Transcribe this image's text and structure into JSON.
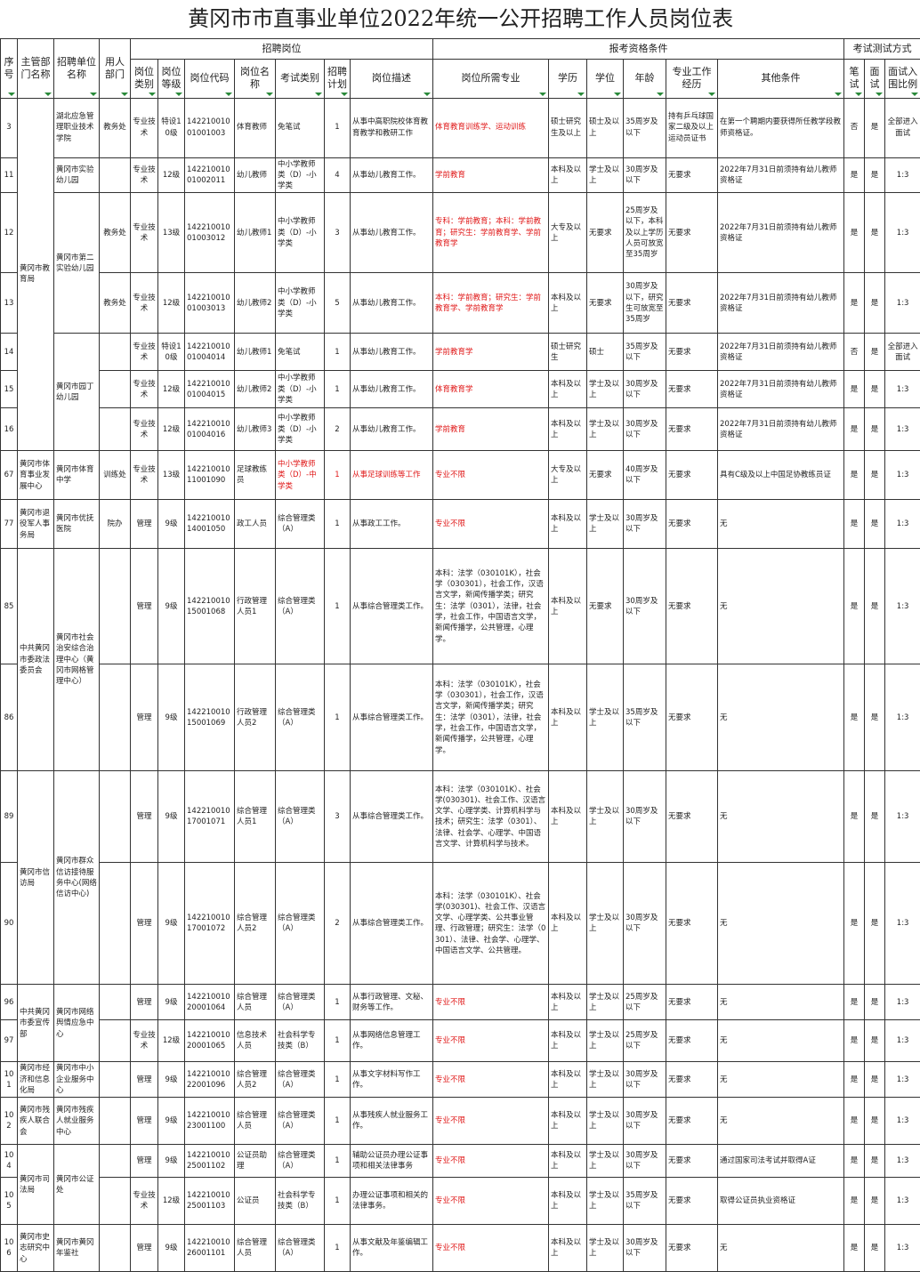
{
  "header": {
    "title": "黄冈市市直事业单位2022年统一公开招聘工作人员岗位表",
    "groups": [
      "招聘岗位",
      "报考资格条件",
      "考试测试方式"
    ],
    "columns": [
      "序号",
      "主管部门名称",
      "招聘单位名称",
      "用人部门",
      "岗位类别",
      "岗位等级",
      "岗位代码",
      "岗位名称",
      "考试类别",
      "招聘计划",
      "岗位描述",
      "岗位所需专业",
      "学历",
      "学位",
      "年龄",
      "专业工作经历",
      "其他条件",
      "笔试",
      "面试",
      "面试入围比例"
    ]
  },
  "groups": [
    {
      "dept": "黄冈市教育局",
      "units": [
        {
          "unit": "湖北应急管理职业技术学院",
          "rows": [
            [
              "3",
              "教务处",
              "专业技术",
              "特设10级",
              "14221001001001003",
              "体育教师",
              "免笔试",
              "1",
              "从事中高职院校体育教育教学和教研工作",
              "体育教育训练学、运动训练",
              "硕士研究生及以上",
              "硕士及以上",
              "35周岁及以下",
              "持有乒乓球国家二级及以上运动员证书",
              "在第一个聘期内要获得所任教学段教师资格证。",
              "否",
              "是",
              "全部进入面试"
            ]
          ]
        },
        {
          "unit": "黄冈市实验幼儿园",
          "rows": [
            [
              "11",
              "",
              "专业技术",
              "12级",
              "14221001001002011",
              "幼儿教师",
              "中小学教师类（D）-小学类",
              "4",
              "从事幼儿教育工作。",
              "学前教育",
              "本科及以上",
              "学士及以上",
              "30周岁及以下",
              "无要求",
              "2022年7月31日前须持有幼儿教师资格证",
              "是",
              "是",
              "1:3"
            ]
          ]
        },
        {
          "unit": "黄冈市第二实验幼儿园",
          "rows": [
            [
              "12",
              "教务处",
              "专业技术",
              "13级",
              "14221001001003012",
              "幼儿教师1",
              "中小学教师类（D）-小学类",
              "3",
              "从事幼儿教育工作。",
              "专科：学前教育；本科：学前教育；研究生：学前教育学、学前教育学",
              "大专及以上",
              "无要求",
              "25周岁及以下，本科及以上学历人员可放宽至35周岁",
              "无要求",
              "2022年7月31日前须持有幼儿教师资格证",
              "是",
              "是",
              "1:3"
            ],
            [
              "13",
              "教务处",
              "专业技术",
              "12级",
              "14221001001003013",
              "幼儿教师2",
              "中小学教师类（D）-小学类",
              "5",
              "从事幼儿教育工作。",
              "本科：学前教育；研究生：学前教育学、学前教育学",
              "本科及以上",
              "无要求",
              "30周岁及以下，研究生可放宽至35周岁",
              "无要求",
              "2022年7月31日前须持有幼儿教师资格证",
              "是",
              "是",
              "1:3"
            ]
          ]
        },
        {
          "unit": "黄冈市园丁幼儿园",
          "rows": [
            [
              "14",
              "",
              "专业技术",
              "特设10级",
              "14221001001004014",
              "幼儿教师1",
              "免笔试",
              "1",
              "从事幼儿教育工作。",
              "学前教育学",
              "硕士研究生",
              "硕士",
              "35周岁及以下",
              "无要求",
              "2022年7月31日前须持有幼儿教师资格证",
              "否",
              "是",
              "全部进入面试"
            ],
            [
              "15",
              "",
              "专业技术",
              "12级",
              "14221001001004015",
              "幼儿教师2",
              "中小学教师类（D）-小学类",
              "1",
              "从事幼儿教育工作。",
              "体育教育学",
              "本科及以上",
              "学士及以上",
              "30周岁及以下",
              "无要求",
              "2022年7月31日前须持有幼儿教师资格证",
              "是",
              "是",
              "1:3"
            ],
            [
              "16",
              "",
              "专业技术",
              "12级",
              "14221001001004016",
              "幼儿教师3",
              "中小学教师类（D）-小学类",
              "2",
              "从事幼儿教育工作。",
              "学前教育",
              "本科及以上",
              "学士及以上",
              "30周岁及以下",
              "无要求",
              "2022年7月31日前须持有幼儿教师资格证",
              "是",
              "是",
              "1:3"
            ]
          ]
        }
      ]
    },
    {
      "dept": "黄冈市体育事业发展中心",
      "units": [
        {
          "unit": "黄冈市体育中学",
          "rows": [
            [
              "67",
              "训练处",
              "专业技术",
              "13级",
              "14221001011001090",
              "足球教练员",
              "中小学教师类（D）-中学类",
              "1",
              "从事足球训练等工作",
              "专业不限",
              "大专及以上",
              "无要求",
              "40周岁及以下",
              "无要求",
              "具有C级及以上中国足协教练员证",
              "是",
              "是",
              "1:3"
            ]
          ]
        }
      ]
    },
    {
      "dept": "黄冈市退役军人事务局",
      "units": [
        {
          "unit": "黄冈市优抚医院",
          "rows": [
            [
              "77",
              "院办",
              "管理",
              "9级",
              "14221001014001050",
              "政工人员",
              "综合管理类（A）",
              "1",
              "从事政工工作。",
              "专业不限",
              "本科及以上",
              "学士及以上",
              "30周岁及以下",
              "无要求",
              "无",
              "是",
              "是",
              "1:3"
            ]
          ]
        }
      ]
    },
    {
      "dept": "中共黄冈市委政法委员会",
      "units": [
        {
          "unit": "黄冈市社会治安综合治理中心（黄冈市网格管理中心）",
          "rows": [
            [
              "85",
              "",
              "管理",
              "9级",
              "14221001015001068",
              "行政管理人员1",
              "综合管理类（A）",
              "1",
              "从事综合管理类工作。",
              "本科：法学（030101K），社会学（030301），社会工作，汉语言文学，新闻传播学类；研究生：法学（0301），法律，社会学，社会工作，中国语言文学，新闻传播学，公共管理，心理学。",
              "本科及以上",
              "无要求",
              "30周岁及以下",
              "无要求",
              "无",
              "是",
              "是",
              "1:3"
            ],
            [
              "86",
              "",
              "管理",
              "9级",
              "14221001015001069",
              "行政管理人员2",
              "综合管理类（A）",
              "1",
              "从事综合管理类工作。",
              "本科：法学（030101K），社会学（030301），社会工作，汉语言文学，新闻传播学类；研究生：法学（0301），法律，社会学，社会工作，中国语言文学，新闻传播学，公共管理，心理学。",
              "本科及以上",
              "学士及以上",
              "35周岁及以下",
              "无要求",
              "无",
              "是",
              "是",
              "1:3"
            ]
          ]
        }
      ]
    },
    {
      "dept": "黄冈市信访局",
      "units": [
        {
          "unit": "黄冈市群众信访接待服务中心(网络信访中心)",
          "rows": [
            [
              "89",
              "",
              "管理",
              "9级",
              "14221001017001071",
              "综合管理人员1",
              "综合管理类（A）",
              "3",
              "从事综合管理类工作。",
              "本科：法学（030101K）、社会学(030301)、社会工作、汉语言文学、心理学类、计算机科学与技术；研究生：法学（0301）、法律、社会学、心理学、中国语言文学、计算机科学与技术。",
              "本科及以上",
              "学士及以上",
              "30周岁及以下",
              "无要求",
              "无",
              "是",
              "是",
              "1:3"
            ],
            [
              "90",
              "",
              "管理",
              "9级",
              "14221001017001072",
              "综合管理人员2",
              "综合管理类（A）",
              "2",
              "从事综合管理类工作。",
              "本科：法学（030101K）、社会学(030301)、社会工作、汉语言文学、心理学类、公共事业管理、行政管理；研究生：法学（0301）、法律、社会学、心理学、中国语言文学、公共管理。",
              "本科及以上",
              "学士及以上",
              "30周岁及以下",
              "无要求",
              "无",
              "是",
              "是",
              "1:3"
            ]
          ]
        }
      ]
    },
    {
      "dept": "中共黄冈市委宣传部",
      "units": [
        {
          "unit": "黄冈市网络舆情应急中心",
          "rows": [
            [
              "96",
              "",
              "管理",
              "9级",
              "14221001020001064",
              "综合管理人员",
              "综合管理类（A）",
              "1",
              "从事行政管理、文秘、财务等工作。",
              "专业不限",
              "本科及以上",
              "学士及以上",
              "25周岁及以下",
              "无要求",
              "无",
              "是",
              "是",
              "1:3"
            ],
            [
              "97",
              "",
              "专业技术",
              "12级",
              "14221001020001065",
              "信息技术人员",
              "社会科学专技类（B）",
              "1",
              "从事网络信息管理工作。",
              "专业不限",
              "本科及以上",
              "学士及以上",
              "25周岁及以下",
              "无要求",
              "无",
              "是",
              "是",
              "1:3"
            ]
          ]
        }
      ]
    },
    {
      "dept": "黄冈市经济和信息化局",
      "units": [
        {
          "unit": "黄冈市中小企业服务中心",
          "rows": [
            [
              "101",
              "",
              "管理",
              "9级",
              "14221001022001096",
              "综合管理人员2",
              "综合管理类（A）",
              "1",
              "从事文字材料写作工作。",
              "专业不限",
              "本科及以上",
              "学士及以上",
              "30周岁及以下",
              "无要求",
              "无",
              "是",
              "是",
              "1:3"
            ]
          ]
        }
      ]
    },
    {
      "dept": "黄冈市残疾人联合会",
      "units": [
        {
          "unit": "黄冈市残疾人就业服务中心",
          "rows": [
            [
              "102",
              "",
              "管理",
              "9级",
              "14221001023001100",
              "综合管理人员",
              "综合管理类（A）",
              "1",
              "从事残疾人就业服务工作。",
              "专业不限",
              "本科及以上",
              "学士及以上",
              "30周岁及以下",
              "无要求",
              "无",
              "是",
              "是",
              "1:3"
            ]
          ]
        }
      ]
    },
    {
      "dept": "黄冈市司法局",
      "units": [
        {
          "unit": "黄冈市公证处",
          "rows": [
            [
              "104",
              "",
              "管理",
              "9级",
              "14221001025001102",
              "公证员助理",
              "综合管理类（A）",
              "1",
              "辅助公证员办理公证事项和相关法律事务",
              "专业不限",
              "本科及以上",
              "学士及以上",
              "30周岁及以下",
              "无要求",
              "通过国家司法考试并取得A证",
              "是",
              "是",
              "1:3"
            ],
            [
              "105",
              "",
              "专业技术",
              "12级",
              "14221001025001103",
              "公证员",
              "社会科学专技类（B）",
              "1",
              "办理公证事项和相关的法律事务。",
              "专业不限",
              "本科及以上",
              "学士及以上",
              "35周岁及以下",
              "无要求",
              "取得公证员执业资格证",
              "是",
              "是",
              "1:3"
            ]
          ]
        }
      ]
    },
    {
      "dept": "黄冈市史志研究中心",
      "units": [
        {
          "unit": "黄冈市黄冈年鉴社",
          "rows": [
            [
              "106",
              "",
              "管理",
              "9级",
              "14221001026001101",
              "综合管理人员",
              "综合管理类（A）",
              "1",
              "从事文献及年鉴编辑工作。",
              "专业不限",
              "本科及以上",
              "学士及以上",
              "30周岁及以下",
              "无要求",
              "无",
              "是",
              "是",
              "1:3"
            ]
          ]
        }
      ]
    }
  ]
}
